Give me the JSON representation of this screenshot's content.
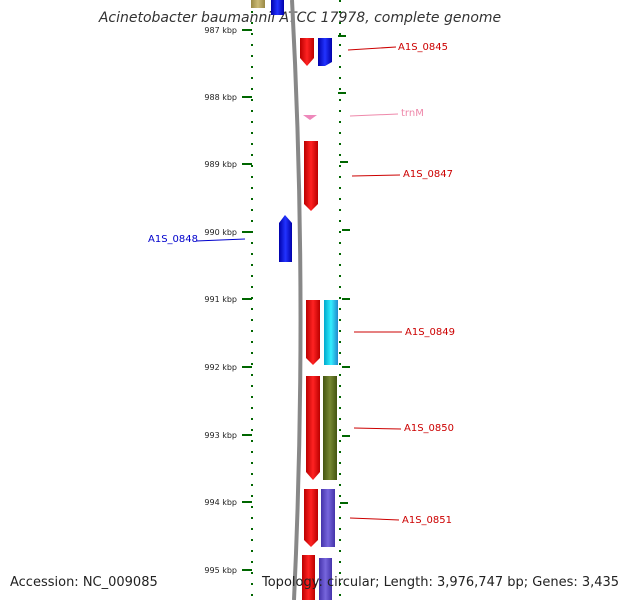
{
  "title": "Acinetobacter baumannii ATCC 17978, complete genome",
  "footer": {
    "accession": "Accession: NC_009085",
    "summary": "Topology: circular; Length: 3,976,747 bp; Genes: 3,435"
  },
  "scale": {
    "unit": "kbp",
    "ticks": [
      "987 kbp",
      "988 kbp",
      "989 kbp",
      "990 kbp",
      "991 kbp",
      "992 kbp",
      "993 kbp",
      "994 kbp",
      "995 kbp"
    ]
  },
  "genes": [
    {
      "label": "A1S_0845",
      "color": "#cc0000",
      "strand": "reverse"
    },
    {
      "label": "trnM",
      "color": "#ee88aa",
      "strand": "reverse"
    },
    {
      "label": "A1S_0847",
      "color": "#cc0000",
      "strand": "reverse"
    },
    {
      "label": "A1S_0848",
      "color": "#0000cc",
      "strand": "forward"
    },
    {
      "label": "A1S_0849",
      "color": "#cc0000",
      "strand": "reverse"
    },
    {
      "label": "A1S_0850",
      "color": "#cc0000",
      "strand": "reverse"
    },
    {
      "label": "A1S_0851",
      "color": "#cc0000",
      "strand": "reverse"
    }
  ],
  "colors": {
    "cds_forward": "#0000ee",
    "cds_reverse": "#ee0000",
    "trna": "#ee88aa",
    "cog_blue": "#0011ee",
    "cog_cyan": "#11ddee",
    "cog_olive": "#667722",
    "cog_purple": "#6655cc",
    "cog_khaki": "#bbaa66",
    "backbone": "#888888",
    "dots": "#006600"
  }
}
